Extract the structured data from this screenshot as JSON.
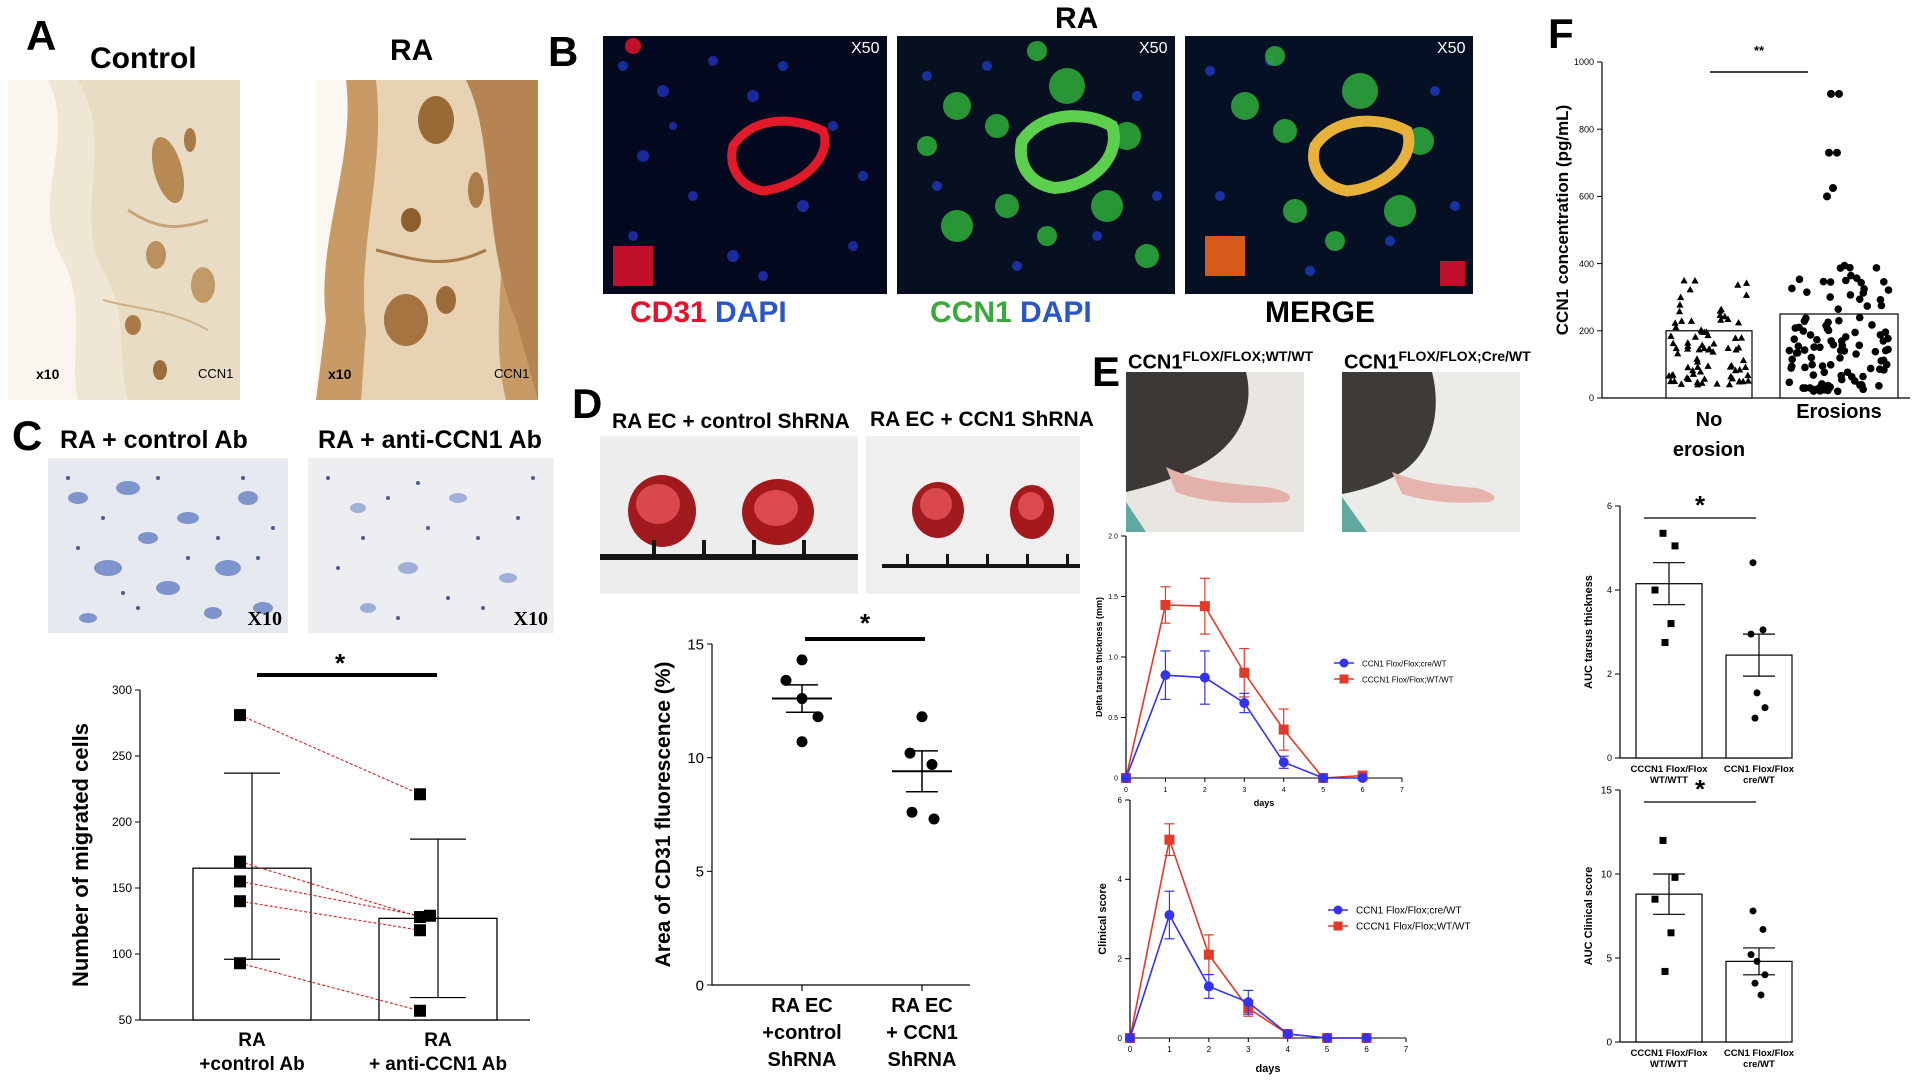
{
  "panels": {
    "A": {
      "letter": "A",
      "left_title": "Control",
      "right_title": "RA",
      "mag": "x10",
      "stain": "CCN1"
    },
    "B": {
      "letter": "B",
      "title": "RA",
      "mag": "X50",
      "cap1_a": "CD31",
      "cap1_b": "DAPI",
      "cap2_a": "CCN1",
      "cap2_b": "DAPI",
      "cap3": "MERGE",
      "colors": {
        "red": "#e8102a",
        "blue": "#2a56c6",
        "green": "#3aa83a"
      }
    },
    "C": {
      "letter": "C",
      "left_title": "RA +  control Ab",
      "right_title": "RA + anti-CCN1 Ab",
      "mag": "X10",
      "sig": "*"
    },
    "D": {
      "letter": "D",
      "left_title": "RA EC + control ShRNA",
      "right_title": "RA EC + CCN1 ShRNA",
      "sig": "*"
    },
    "E": {
      "letter": "E",
      "left_title": "CCN1",
      "left_sup": "FLOX/FLOX;WT/WT",
      "right_title": "CCN1",
      "right_sup": "FLOX/FLOX;Cre/WT"
    },
    "F": {
      "letter": "F",
      "sig": "**"
    }
  },
  "chart_data": [
    {
      "id": "C-migration",
      "type": "bar",
      "ylabel": "Number of migrated cells",
      "ylim": [
        50,
        300
      ],
      "yticks": [
        50,
        100,
        150,
        200,
        250,
        300
      ],
      "categories": [
        "RA\n+control Ab",
        "RA\n+ anti-CCN1 Ab"
      ],
      "values": [
        165,
        127
      ],
      "errors": [
        [
          96,
          237
        ],
        [
          67,
          187
        ]
      ],
      "paired_points": [
        [
          281,
          221
        ],
        [
          170,
          128
        ],
        [
          155,
          129
        ],
        [
          140,
          118
        ],
        [
          93,
          57
        ]
      ],
      "significance": "*"
    },
    {
      "id": "D-cd31",
      "type": "scatter",
      "ylabel": "Area of CD31 fluorescence (%)",
      "ylim": [
        0,
        15
      ],
      "yticks": [
        0,
        5,
        10,
        15
      ],
      "categories": [
        "RA EC\n+control\nShRNA",
        "RA EC\n+ CCN1\nShRNA"
      ],
      "means": [
        12.6,
        9.4
      ],
      "sem": [
        0.6,
        0.9
      ],
      "points": [
        [
          14.3,
          13.4,
          12.6,
          11.8,
          10.7
        ],
        [
          11.8,
          10.2,
          9.7,
          7.6,
          7.3
        ]
      ],
      "significance": "*"
    },
    {
      "id": "E-tarsus",
      "type": "line",
      "xlabel": "days",
      "ylabel": "Delta tarsus thickness (mm)",
      "xlim": [
        0,
        7
      ],
      "ylim": [
        0,
        2
      ],
      "xticks": [
        0,
        1,
        2,
        3,
        4,
        5,
        6,
        7
      ],
      "yticks": [
        0,
        0.5,
        1.0,
        1.5,
        2.0
      ],
      "x": [
        0,
        1,
        2,
        3,
        4,
        5,
        6
      ],
      "series": [
        {
          "name": "CCN1 Flox/Flox;cre/WT",
          "color": "#3333ee",
          "marker": "circle",
          "values": [
            0,
            0.85,
            0.83,
            0.62,
            0.13,
            0,
            0
          ],
          "err": [
            0,
            0.2,
            0.22,
            0.08,
            0.05,
            0,
            0
          ]
        },
        {
          "name": "CCCN1 Flox/Flox;WT/WT",
          "color": "#e03a2a",
          "marker": "square",
          "values": [
            0,
            1.43,
            1.42,
            0.87,
            0.4,
            0,
            0.02
          ],
          "err": [
            0,
            0.15,
            0.23,
            0.2,
            0.17,
            0,
            0
          ]
        }
      ]
    },
    {
      "id": "E-clinical",
      "type": "line",
      "xlabel": "days",
      "ylabel": "Clinical score",
      "xlim": [
        0,
        7
      ],
      "ylim": [
        0,
        6
      ],
      "xticks": [
        0,
        1,
        2,
        3,
        4,
        5,
        6,
        7
      ],
      "yticks": [
        0,
        2,
        4,
        6
      ],
      "x": [
        0,
        1,
        2,
        3,
        4,
        5,
        6
      ],
      "series": [
        {
          "name": "CCN1 Flox/Flox;cre/WT",
          "color": "#3333ee",
          "marker": "circle",
          "values": [
            0,
            3.1,
            1.3,
            0.9,
            0.1,
            0,
            0
          ],
          "err": [
            0,
            0.6,
            0.3,
            0.3,
            0.05,
            0,
            0
          ]
        },
        {
          "name": "CCCN1 Flox/Flox;WT/WT",
          "color": "#e03a2a",
          "marker": "square",
          "values": [
            0,
            5.0,
            2.1,
            0.75,
            0.1,
            0,
            0
          ],
          "err": [
            0,
            0.4,
            0.5,
            0.2,
            0.05,
            0,
            0
          ]
        }
      ]
    },
    {
      "id": "F-concentration",
      "type": "bar",
      "ylabel": "CCN1 concentration (pg/mL)",
      "ylim": [
        0,
        1000
      ],
      "yticks": [
        0,
        200,
        400,
        600,
        800,
        1000
      ],
      "categories": [
        "No\nerosion",
        "Erosions"
      ],
      "values": [
        200,
        250
      ],
      "significance": "**",
      "outliers": [
        [],
        [
          905,
          905,
          730,
          730,
          625,
          600
        ]
      ]
    },
    {
      "id": "F-auc-tarsus",
      "type": "bar",
      "ylabel": "AUC tarsus thickness",
      "ylim": [
        0,
        6
      ],
      "yticks": [
        0,
        2,
        4,
        6
      ],
      "categories": [
        "CCCN1 Flox/Flox\nWT/WTT",
        "CCN1 Flox/Flox\ncre/WT"
      ],
      "values": [
        4.15,
        2.45
      ],
      "sem": [
        0.5,
        0.5
      ],
      "points": [
        [
          5.35,
          5.05,
          4.0,
          3.2,
          2.75
        ],
        [
          4.65,
          3.05,
          2.95,
          1.55,
          1.2,
          0.95
        ]
      ],
      "significance": "*"
    },
    {
      "id": "F-auc-clinical",
      "type": "bar",
      "ylabel": "AUC Clinical score",
      "ylim": [
        0,
        15
      ],
      "yticks": [
        0,
        5,
        10,
        15
      ],
      "categories": [
        "CCCN1 Flox/Flox\nWT/WTT",
        "CCN1 Flox/Flox\ncre/WT"
      ],
      "values": [
        8.8,
        4.8
      ],
      "sem": [
        1.2,
        0.8
      ],
      "points": [
        [
          12.0,
          9.8,
          8.5,
          6.5,
          4.2
        ],
        [
          7.8,
          6.7,
          5.2,
          4.8,
          4.0,
          3.5,
          2.8
        ]
      ],
      "significance": "*"
    }
  ]
}
